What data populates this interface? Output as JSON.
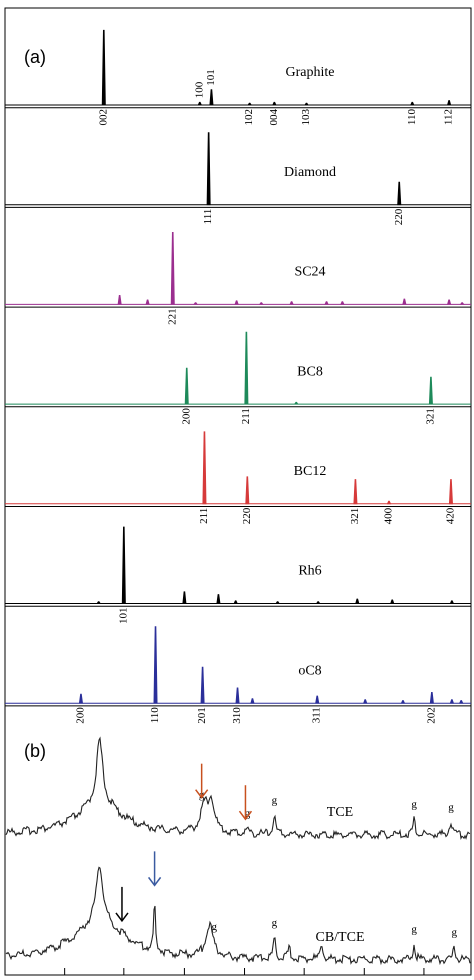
{
  "chart_data": {
    "type": "stick",
    "xlim": [
      0,
      100
    ],
    "ylim": [
      0,
      100
    ],
    "xticks": [
      12.8,
      25.5,
      38.5,
      51.4,
      64.2,
      77.1,
      89.9
    ],
    "panel_labels": [
      "(a)",
      "(b)"
    ],
    "panels": [
      {
        "name": "Graphite",
        "color": "#000000",
        "peaks": [
          {
            "x": 21.2,
            "h": 83,
            "label": "002"
          },
          {
            "x": 41.8,
            "h": 3,
            "label": "100"
          },
          {
            "x": 44.3,
            "h": 17,
            "label": "101"
          },
          {
            "x": 52.5,
            "h": 2,
            "label": "102"
          },
          {
            "x": 57.8,
            "h": 3,
            "label": "004"
          },
          {
            "x": 64.7,
            "h": 2,
            "label": "103"
          },
          {
            "x": 87.4,
            "h": 3,
            "label": "110"
          },
          {
            "x": 95.3,
            "h": 5,
            "label": "112"
          }
        ]
      },
      {
        "name": "Diamond",
        "color": "#000000",
        "peaks": [
          {
            "x": 43.7,
            "h": 80,
            "label": "111"
          },
          {
            "x": 84.6,
            "h": 25,
            "label": "220"
          }
        ]
      },
      {
        "name": "SC24",
        "color": "#9b2f8f",
        "peaks": [
          {
            "x": 24.6,
            "h": 10
          },
          {
            "x": 30.6,
            "h": 5
          },
          {
            "x": 36.0,
            "h": 80,
            "label": "221"
          },
          {
            "x": 40.9,
            "h": 2
          },
          {
            "x": 49.7,
            "h": 4
          },
          {
            "x": 55.0,
            "h": 2
          },
          {
            "x": 61.5,
            "h": 3
          },
          {
            "x": 69.0,
            "h": 3
          },
          {
            "x": 72.4,
            "h": 3
          },
          {
            "x": 85.7,
            "h": 6
          },
          {
            "x": 95.3,
            "h": 5
          },
          {
            "x": 98.1,
            "h": 2
          }
        ]
      },
      {
        "name": "BC8",
        "color": "#1e8a5a",
        "peaks": [
          {
            "x": 39.0,
            "h": 40,
            "label": "200"
          },
          {
            "x": 51.8,
            "h": 80,
            "label": "211"
          },
          {
            "x": 62.5,
            "h": 2
          },
          {
            "x": 91.4,
            "h": 30,
            "label": "321"
          }
        ]
      },
      {
        "name": "BC12",
        "color": "#d63a3a",
        "peaks": [
          {
            "x": 42.8,
            "h": 80,
            "label": "211"
          },
          {
            "x": 52.0,
            "h": 30,
            "label": "220"
          },
          {
            "x": 75.2,
            "h": 27,
            "label": "321"
          },
          {
            "x": 82.4,
            "h": 3,
            "label": "400"
          },
          {
            "x": 95.7,
            "h": 27,
            "label": "420"
          }
        ]
      },
      {
        "name": "Rh6",
        "color": "#000000",
        "peaks": [
          {
            "x": 20.1,
            "h": 2
          },
          {
            "x": 25.5,
            "h": 85,
            "label": "101"
          },
          {
            "x": 38.5,
            "h": 13
          },
          {
            "x": 45.8,
            "h": 10
          },
          {
            "x": 49.5,
            "h": 3
          },
          {
            "x": 58.5,
            "h": 2
          },
          {
            "x": 67.2,
            "h": 2
          },
          {
            "x": 75.6,
            "h": 5
          },
          {
            "x": 83.1,
            "h": 4
          },
          {
            "x": 95.9,
            "h": 3
          }
        ]
      },
      {
        "name": "oC8",
        "color": "#2b2f9a",
        "peaks": [
          {
            "x": 16.3,
            "h": 10,
            "label": "200"
          },
          {
            "x": 32.3,
            "h": 85,
            "label": "110"
          },
          {
            "x": 42.4,
            "h": 40,
            "label": "201"
          },
          {
            "x": 49.9,
            "h": 17,
            "label": "310"
          },
          {
            "x": 53.1,
            "h": 5
          },
          {
            "x": 67.0,
            "h": 8,
            "label": "311"
          },
          {
            "x": 77.3,
            "h": 4
          },
          {
            "x": 85.4,
            "h": 3
          },
          {
            "x": 91.6,
            "h": 12,
            "label": "202"
          },
          {
            "x": 95.9,
            "h": 4
          },
          {
            "x": 97.9,
            "h": 3
          }
        ]
      }
    ],
    "measured": [
      {
        "name": "TCE",
        "peaks": [
          {
            "x": 20.3,
            "h": 60,
            "w": 0.8
          },
          {
            "x": 20.3,
            "h": 30,
            "w": 6
          },
          {
            "x": 42.8,
            "h": 25,
            "w": 1
          },
          {
            "x": 44.3,
            "h": 28,
            "w": 0.8
          },
          {
            "x": 52.0,
            "h": 5,
            "w": 0.3
          },
          {
            "x": 57.8,
            "h": 18,
            "w": 0.3
          },
          {
            "x": 87.8,
            "h": 15,
            "w": 0.3
          },
          {
            "x": 95.7,
            "h": 12,
            "w": 0.4
          }
        ],
        "g": [
          {
            "x": 42.2,
            "label": "g"
          },
          {
            "x": 52.0,
            "label": "g"
          },
          {
            "x": 57.8,
            "label": "g"
          },
          {
            "x": 87.8,
            "label": "g"
          },
          {
            "x": 95.7,
            "label": "g"
          }
        ],
        "arrows": [
          {
            "x": 42.2,
            "color": "#c8501e"
          },
          {
            "x": 51.6,
            "color": "#c8501e"
          }
        ]
      },
      {
        "name": "CB/TCE",
        "peaks": [
          {
            "x": 20.3,
            "h": 55,
            "w": 0.9
          },
          {
            "x": 20.3,
            "h": 35,
            "w": 7
          },
          {
            "x": 32.1,
            "h": 50,
            "w": 0.2
          },
          {
            "x": 43.9,
            "h": 30,
            "w": 1
          },
          {
            "x": 57.8,
            "h": 20,
            "w": 0.3
          },
          {
            "x": 61.0,
            "h": 12,
            "w": 0.3
          },
          {
            "x": 67.9,
            "h": 15,
            "w": 0.3
          },
          {
            "x": 87.8,
            "h": 15,
            "w": 0.3
          },
          {
            "x": 96.4,
            "h": 12,
            "w": 0.3
          }
        ],
        "g": [
          {
            "x": 44.9,
            "label": "g"
          },
          {
            "x": 57.8,
            "label": "g"
          },
          {
            "x": 87.8,
            "label": "g"
          },
          {
            "x": 96.4,
            "label": "g"
          }
        ],
        "arrows": [
          {
            "x": 25.1,
            "color": "#000000"
          },
          {
            "x": 32.1,
            "color": "#3a5aa0"
          }
        ]
      }
    ]
  }
}
